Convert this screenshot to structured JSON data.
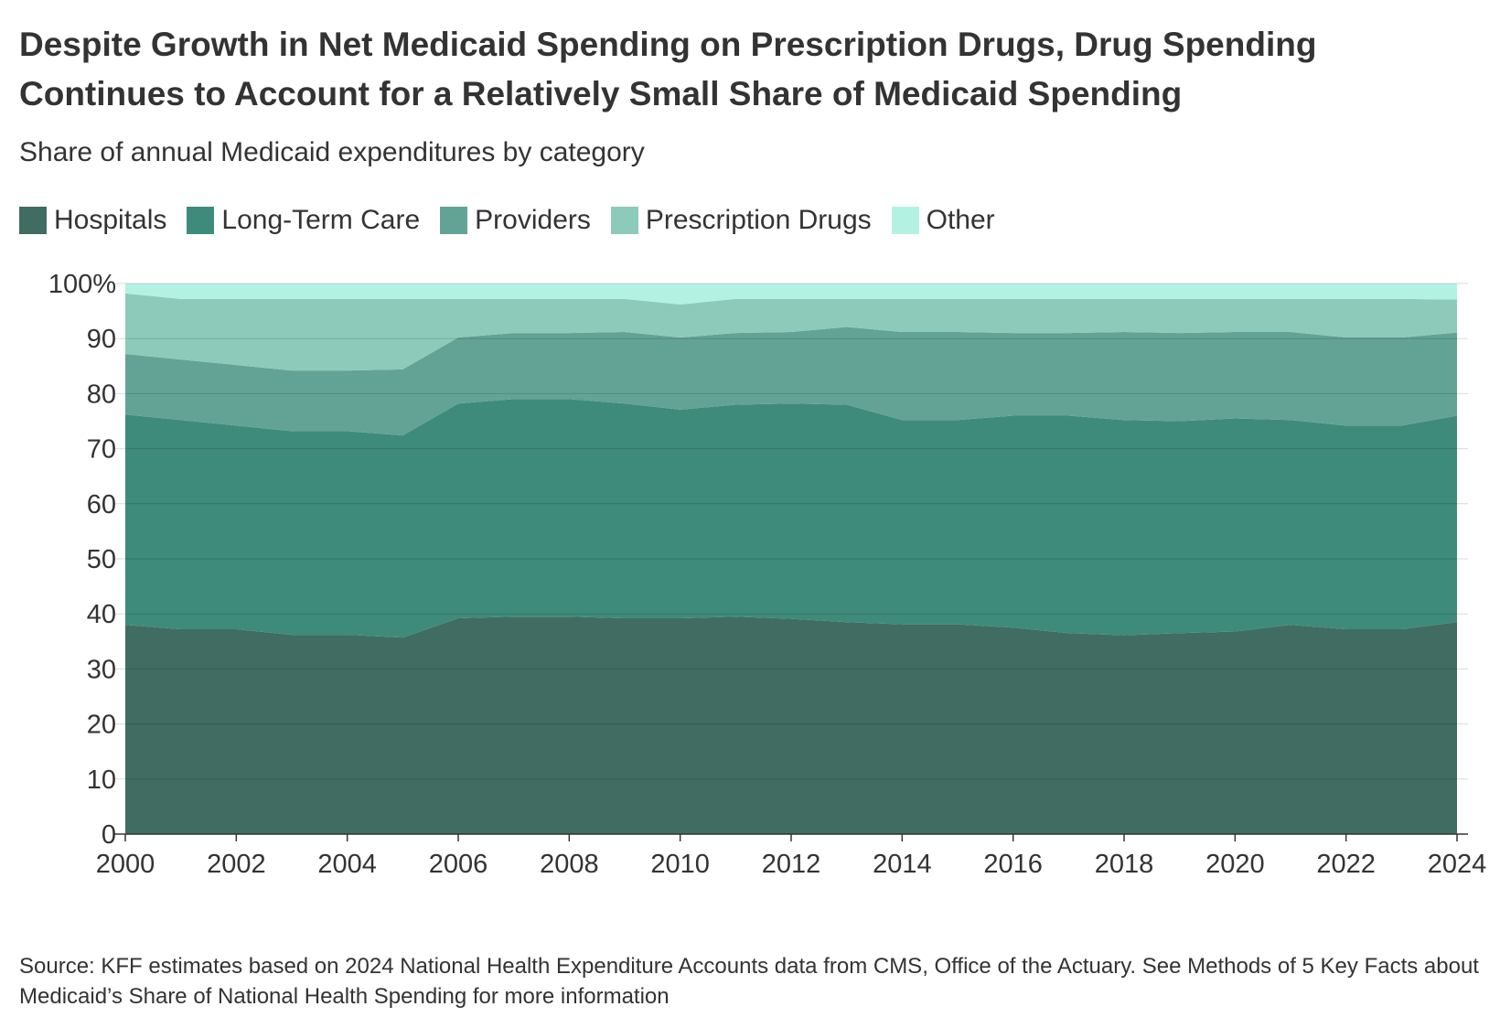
{
  "title": "Despite Growth in Net Medicaid Spending on Prescription Drugs, Drug Spending Continues to Account for a Relatively Small Share of Medicaid Spending",
  "subtitle": "Share of annual Medicaid expenditures by category",
  "source": "Source: KFF estimates based on 2024 National Health Expenditure Accounts data from CMS, Office of the Actuary. See Methods of 5 Key Facts about Medicaid’s Share of National Health Spending for more information",
  "chart_data": {
    "type": "area",
    "stacked": true,
    "legend_position": "top-left",
    "grid": true,
    "ylim": [
      0,
      100
    ],
    "yticks": [
      "0",
      "10",
      "20",
      "30",
      "40",
      "50",
      "60",
      "70",
      "80",
      "90",
      "100%"
    ],
    "xticks": [
      "2000",
      "2002",
      "2004",
      "2006",
      "2008",
      "2010",
      "2012",
      "2014",
      "2016",
      "2018",
      "2020",
      "2022",
      "2024"
    ],
    "x": [
      2000,
      2001,
      2002,
      2003,
      2004,
      2005,
      2006,
      2007,
      2008,
      2009,
      2010,
      2011,
      2012,
      2013,
      2014,
      2015,
      2016,
      2017,
      2018,
      2019,
      2020,
      2021,
      2022,
      2023,
      2024
    ],
    "series": [
      {
        "name": "Hospitals",
        "color": "#416c62",
        "values": [
          38,
          37.2,
          37.2,
          36.2,
          36.2,
          35.7,
          39.2,
          39.5,
          39.5,
          39.2,
          39.2,
          39.5,
          39.1,
          38.5,
          38.1,
          38.1,
          37.5,
          36.5,
          36.1,
          36.5,
          36.8,
          38,
          37.2,
          37.2,
          38.5
        ]
      },
      {
        "name": "Long-Term Care",
        "color": "#3e8b7b",
        "values": [
          38.2,
          38,
          37,
          37,
          37,
          36.7,
          39,
          39.5,
          39.5,
          39,
          37.9,
          38.5,
          39.1,
          39.5,
          37.1,
          37.1,
          38.5,
          39.5,
          39.1,
          38.5,
          38.7,
          37.2,
          37,
          37,
          37.5
        ]
      },
      {
        "name": "Providers",
        "color": "#63a396",
        "values": [
          11,
          11,
          11,
          11,
          11,
          12,
          12,
          12,
          12,
          13,
          13.1,
          13,
          13,
          14.1,
          16,
          16,
          15,
          15,
          16,
          16,
          15.7,
          16,
          16,
          16,
          15.1
        ]
      },
      {
        "name": "Prescription Drugs",
        "color": "#8ecab9",
        "values": [
          11,
          11,
          12,
          13,
          13,
          12.8,
          7,
          6.2,
          6.2,
          6,
          6,
          6.2,
          6,
          5.1,
          6,
          6,
          6.2,
          6.2,
          6,
          6.2,
          6,
          6,
          7,
          7,
          6
        ]
      },
      {
        "name": "Other",
        "color": "#b3f2e3",
        "values": [
          1.8,
          2.8,
          2.8,
          2.8,
          2.8,
          2.8,
          2.8,
          2.8,
          2.8,
          2.8,
          3.8,
          2.8,
          2.8,
          2.8,
          2.8,
          2.8,
          2.8,
          2.8,
          2.8,
          2.8,
          2.8,
          2.8,
          2.8,
          2.8,
          2.9
        ]
      }
    ]
  }
}
